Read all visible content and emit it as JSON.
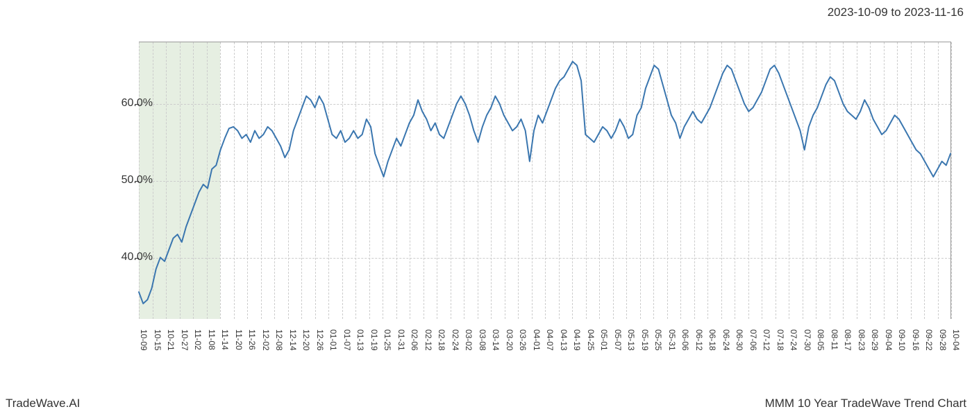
{
  "header": {
    "date_range": "2023-10-09 to 2023-11-16"
  },
  "footer": {
    "left": "TradeWave.AI",
    "right": "MMM 10 Year TradeWave Trend Chart"
  },
  "chart": {
    "type": "line",
    "background_color": "#ffffff",
    "line_color": "#3a76af",
    "line_width": 2,
    "grid_color": "#cccccc",
    "grid_style": "dashed",
    "border_color": "#999999",
    "highlight_band": {
      "color": "#dce8d5",
      "opacity": 0.7,
      "x_start_index": 0,
      "x_end_index": 6
    },
    "y_axis": {
      "min": 32,
      "max": 68,
      "ticks": [
        40.0,
        50.0,
        60.0
      ],
      "tick_labels": [
        "40.0%",
        "50.0%",
        "60.0%"
      ],
      "label_fontsize": 16,
      "label_color": "#333333"
    },
    "x_axis": {
      "labels": [
        "10-09",
        "10-15",
        "10-21",
        "10-27",
        "11-02",
        "11-08",
        "11-14",
        "11-20",
        "11-26",
        "12-02",
        "12-08",
        "12-14",
        "12-20",
        "12-26",
        "01-01",
        "01-07",
        "01-13",
        "01-19",
        "01-25",
        "01-31",
        "02-06",
        "02-12",
        "02-18",
        "02-24",
        "03-02",
        "03-08",
        "03-14",
        "03-20",
        "03-26",
        "04-01",
        "04-07",
        "04-13",
        "04-19",
        "04-25",
        "05-01",
        "05-07",
        "05-13",
        "05-19",
        "05-25",
        "05-31",
        "06-06",
        "06-12",
        "06-18",
        "06-24",
        "06-30",
        "07-06",
        "07-12",
        "07-18",
        "07-24",
        "07-30",
        "08-05",
        "08-11",
        "08-17",
        "08-23",
        "08-29",
        "09-04",
        "09-10",
        "09-16",
        "09-22",
        "09-28",
        "10-04"
      ],
      "label_fontsize": 12,
      "label_rotation": 90,
      "label_color": "#333333"
    },
    "series": {
      "values": [
        35.5,
        34.0,
        34.5,
        36.0,
        38.5,
        40.0,
        39.5,
        41.0,
        42.5,
        43.0,
        42.0,
        44.0,
        45.5,
        47.0,
        48.5,
        49.5,
        49.0,
        51.5,
        52.0,
        54.0,
        55.5,
        56.8,
        57.0,
        56.5,
        55.5,
        56.0,
        55.0,
        56.5,
        55.5,
        56.0,
        57.0,
        56.5,
        55.5,
        54.5,
        53.0,
        54.0,
        56.5,
        58.0,
        59.5,
        61.0,
        60.5,
        59.5,
        61.0,
        60.0,
        58.0,
        56.0,
        55.5,
        56.5,
        55.0,
        55.5,
        56.5,
        55.5,
        56.0,
        58.0,
        57.0,
        53.5,
        52.0,
        50.5,
        52.5,
        54.0,
        55.5,
        54.5,
        56.0,
        57.5,
        58.5,
        60.5,
        59.0,
        58.0,
        56.5,
        57.5,
        56.0,
        55.5,
        57.0,
        58.5,
        60.0,
        61.0,
        60.0,
        58.5,
        56.5,
        55.0,
        57.0,
        58.5,
        59.5,
        61.0,
        60.0,
        58.5,
        57.5,
        56.5,
        57.0,
        58.0,
        56.5,
        52.5,
        56.5,
        58.5,
        57.5,
        59.0,
        60.5,
        62.0,
        63.0,
        63.5,
        64.5,
        65.5,
        65.0,
        63.0,
        56.0,
        55.5,
        55.0,
        56.0,
        57.0,
        56.5,
        55.5,
        56.5,
        58.0,
        57.0,
        55.5,
        56.0,
        58.5,
        59.5,
        62.0,
        63.5,
        65.0,
        64.5,
        62.5,
        60.5,
        58.5,
        57.5,
        55.5,
        57.0,
        58.0,
        59.0,
        58.0,
        57.5,
        58.5,
        59.5,
        61.0,
        62.5,
        64.0,
        65.0,
        64.5,
        63.0,
        61.5,
        60.0,
        59.0,
        59.5,
        60.5,
        61.5,
        63.0,
        64.5,
        65.0,
        64.0,
        62.5,
        61.0,
        59.5,
        58.0,
        56.5,
        54.0,
        57.0,
        58.5,
        59.5,
        61.0,
        62.5,
        63.5,
        63.0,
        61.5,
        60.0,
        59.0,
        58.5,
        58.0,
        59.0,
        60.5,
        59.5,
        58.0,
        57.0,
        56.0,
        56.5,
        57.5,
        58.5,
        58.0,
        57.0,
        56.0,
        55.0,
        54.0,
        53.5,
        52.5,
        51.5,
        50.5,
        51.5,
        52.5,
        52.0,
        53.5
      ]
    }
  }
}
